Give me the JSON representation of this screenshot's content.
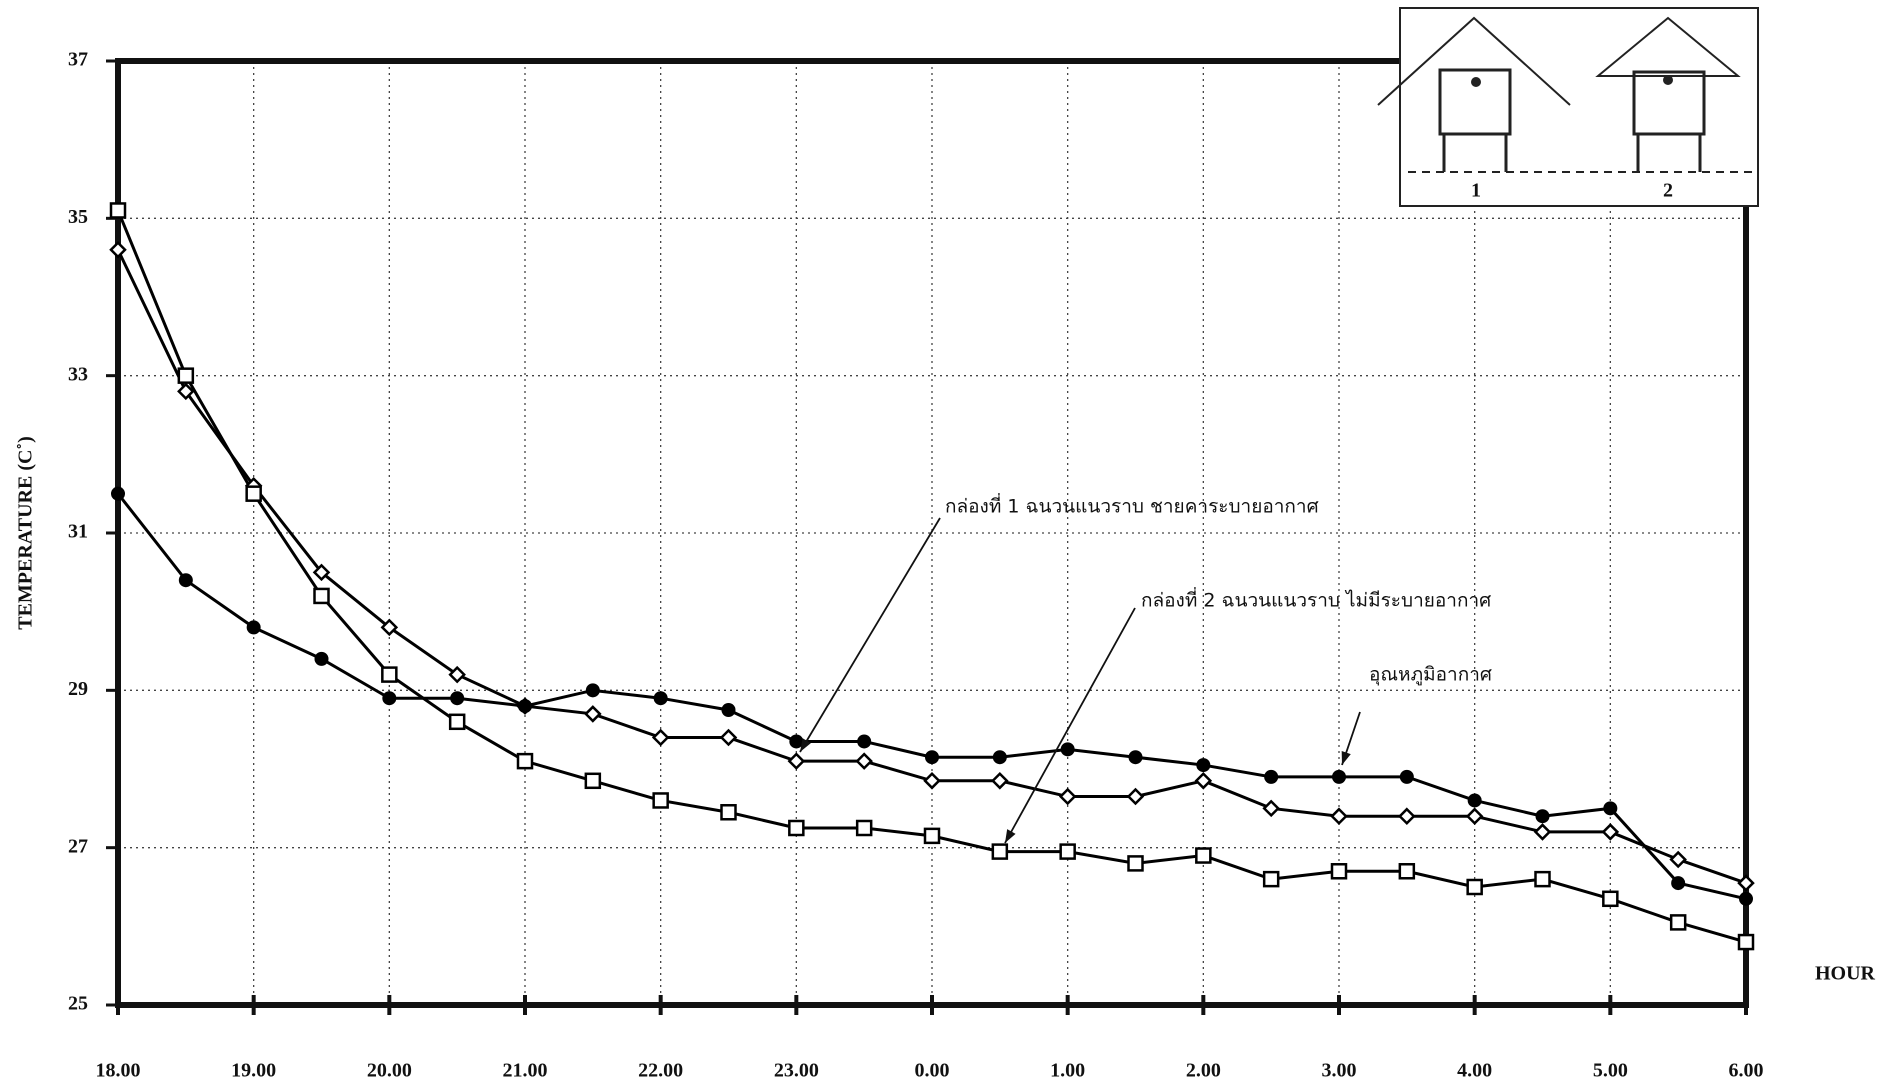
{
  "chart_data": {
    "type": "line",
    "y_label": "TEMPERATURE (C˚)",
    "x_label": "HOUR",
    "categories": [
      "18.00",
      null,
      "19.00",
      null,
      "20.00",
      null,
      "21.00",
      null,
      "22.00",
      null,
      "23.00",
      null,
      "0.00",
      null,
      "1.00",
      null,
      "2.00",
      null,
      "3.00",
      null,
      "4.00",
      null,
      "5.00",
      null,
      "6.00"
    ],
    "ylim": [
      25,
      37
    ],
    "yticks": [
      25,
      27,
      29,
      31,
      33,
      35,
      37
    ],
    "grid": true,
    "legend": false,
    "series": [
      {
        "name": "กล่องที่ 1 ฉนวนแนวราบ ชายคาระบายอากาศ",
        "color": "#000000",
        "marker": "diamond",
        "values": [
          34.6,
          32.8,
          31.6,
          30.5,
          29.8,
          29.2,
          28.8,
          28.7,
          28.4,
          28.4,
          28.1,
          28.1,
          27.85,
          27.85,
          27.65,
          27.65,
          27.85,
          27.5,
          27.4,
          27.4,
          27.4,
          27.2,
          27.2,
          26.85,
          26.55
        ]
      },
      {
        "name": "กล่องที่ 2 ฉนวนแนวราบ ไม่มีระบายอากาศ",
        "color": "#000000",
        "marker": "square",
        "values": [
          35.1,
          33.0,
          31.5,
          30.2,
          29.2,
          28.6,
          28.1,
          27.85,
          27.6,
          27.45,
          27.25,
          27.25,
          27.15,
          26.95,
          26.95,
          26.8,
          26.9,
          26.6,
          26.7,
          26.7,
          26.5,
          26.6,
          26.35,
          26.05,
          25.8
        ]
      },
      {
        "name": "อุณหภูมิอากาศ",
        "color": "#000000",
        "marker": "circle",
        "values": [
          31.5,
          30.4,
          29.8,
          29.4,
          28.9,
          28.9,
          28.8,
          29.0,
          28.9,
          28.75,
          28.35,
          28.35,
          28.15,
          28.15,
          28.25,
          28.15,
          28.05,
          27.9,
          27.9,
          27.9,
          27.6,
          27.4,
          27.5,
          26.55,
          26.35
        ]
      }
    ],
    "inset_labels": [
      "1",
      "2"
    ]
  }
}
